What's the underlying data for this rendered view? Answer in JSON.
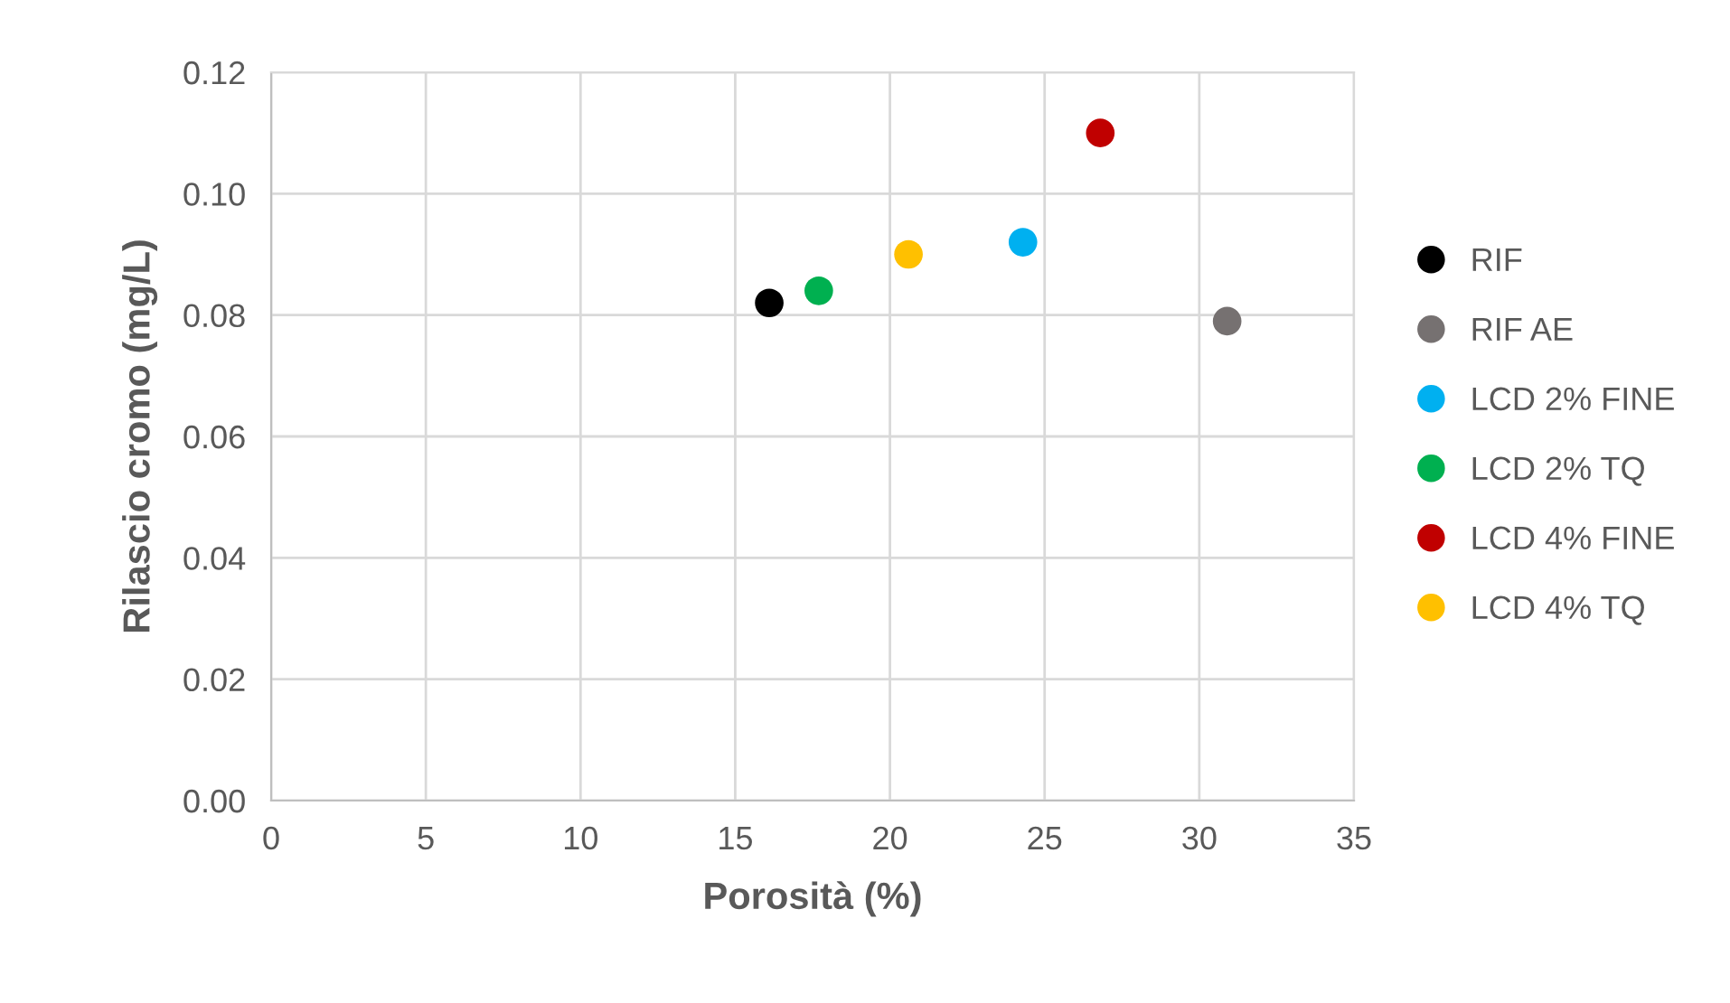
{
  "chart_data": {
    "type": "scatter",
    "xlabel": "Porosità (%)",
    "ylabel": "Rilascio cromo (mg/L)",
    "xlim": [
      0,
      35
    ],
    "xticks": [
      0,
      5,
      10,
      15,
      20,
      25,
      30,
      35
    ],
    "ylim": [
      0,
      0.12
    ],
    "yticks": [
      {
        "value": 0,
        "label": "0.00"
      },
      {
        "value": 0.02,
        "label": "0.02"
      },
      {
        "value": 0.04,
        "label": "0.04"
      },
      {
        "value": 0.06,
        "label": "0.06"
      },
      {
        "value": 0.08,
        "label": "0.08"
      },
      {
        "value": 0.1,
        "label": "0.10"
      },
      {
        "value": 0.12,
        "label": "0.12"
      }
    ],
    "grid": true,
    "legend": "right",
    "marker": "circle",
    "series": [
      {
        "name": "RIF",
        "color": "#000000",
        "x": [
          16.1
        ],
        "values": [
          0.082
        ]
      },
      {
        "name": "RIF AE",
        "color": "#767171",
        "x": [
          30.9
        ],
        "values": [
          0.079
        ]
      },
      {
        "name": "LCD 2% FINE",
        "color": "#00b0f0",
        "x": [
          24.3
        ],
        "values": [
          0.092
        ]
      },
      {
        "name": "LCD 2% TQ",
        "color": "#00b050",
        "x": [
          17.7
        ],
        "values": [
          0.084
        ]
      },
      {
        "name": "LCD 4% FINE",
        "color": "#c00000",
        "x": [
          26.8
        ],
        "values": [
          0.11
        ]
      },
      {
        "name": "LCD 4% TQ",
        "color": "#ffc000",
        "x": [
          20.6
        ],
        "values": [
          0.09
        ]
      }
    ]
  }
}
